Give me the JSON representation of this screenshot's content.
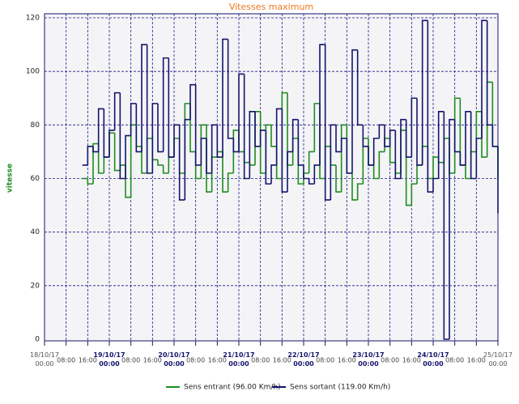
{
  "chart_data": {
    "type": "step",
    "title": "Vitesses maximum",
    "ylabel": "vitesse",
    "x": [
      "18/10/17 14:00",
      "18/10/17 16:00",
      "18/10/17 18:00",
      "18/10/17 20:00",
      "18/10/17 22:00",
      "19/10/17 00:00",
      "19/10/17 02:00",
      "19/10/17 04:00",
      "19/10/17 06:00",
      "19/10/17 08:00",
      "19/10/17 10:00",
      "19/10/17 12:00",
      "19/10/17 14:00",
      "19/10/17 16:00",
      "19/10/17 18:00",
      "19/10/17 20:00",
      "19/10/17 22:00",
      "20/10/17 00:00",
      "20/10/17 02:00",
      "20/10/17 04:00",
      "20/10/17 06:00",
      "20/10/17 08:00",
      "20/10/17 10:00",
      "20/10/17 12:00",
      "20/10/17 14:00",
      "20/10/17 16:00",
      "20/10/17 18:00",
      "20/10/17 20:00",
      "20/10/17 22:00",
      "21/10/17 00:00",
      "21/10/17 02:00",
      "21/10/17 04:00",
      "21/10/17 06:00",
      "21/10/17 08:00",
      "21/10/17 10:00",
      "21/10/17 12:00",
      "21/10/17 14:00",
      "21/10/17 16:00",
      "21/10/17 18:00",
      "21/10/17 20:00",
      "21/10/17 22:00",
      "22/10/17 00:00",
      "22/10/17 02:00",
      "22/10/17 04:00",
      "22/10/17 06:00",
      "22/10/17 08:00",
      "22/10/17 10:00",
      "22/10/17 12:00",
      "22/10/17 14:00",
      "22/10/17 16:00",
      "22/10/17 18:00",
      "22/10/17 20:00",
      "22/10/17 22:00",
      "23/10/17 00:00",
      "23/10/17 02:00",
      "23/10/17 04:00",
      "23/10/17 06:00",
      "23/10/17 08:00",
      "23/10/17 10:00",
      "23/10/17 12:00",
      "23/10/17 14:00",
      "23/10/17 16:00",
      "23/10/17 18:00",
      "23/10/17 20:00",
      "23/10/17 22:00",
      "24/10/17 00:00",
      "24/10/17 02:00",
      "24/10/17 04:00",
      "24/10/17 06:00",
      "24/10/17 08:00",
      "24/10/17 10:00",
      "24/10/17 12:00",
      "24/10/17 14:00",
      "24/10/17 16:00",
      "24/10/17 18:00",
      "24/10/17 20:00",
      "24/10/17 22:00",
      "25/10/17 00:00"
    ],
    "series": [
      {
        "name": "Sens entrant (96.00 Km/h)",
        "color": "#1e8c1e",
        "values": [
          60,
          58,
          73,
          62,
          68,
          77,
          63,
          65,
          53,
          80,
          72,
          62,
          75,
          67,
          65,
          62,
          68,
          75,
          62,
          88,
          70,
          60,
          80,
          55,
          68,
          70,
          55,
          62,
          78,
          70,
          66,
          65,
          85,
          62,
          80,
          72,
          60,
          92,
          65,
          75,
          58,
          62,
          70,
          88,
          60,
          72,
          65,
          55,
          80,
          62,
          52,
          58,
          75,
          65,
          60,
          70,
          75,
          66,
          62,
          78,
          50,
          58,
          65,
          72,
          60,
          68,
          66,
          75,
          62,
          90,
          65,
          60,
          70,
          85,
          68,
          96,
          72,
          60
        ]
      },
      {
        "name": "Sens sortant (119.00 Km/h)",
        "color": "#14146e",
        "values": [
          65,
          72,
          70,
          86,
          68,
          78,
          92,
          60,
          76,
          88,
          70,
          110,
          62,
          88,
          70,
          105,
          68,
          80,
          52,
          82,
          95,
          65,
          75,
          62,
          80,
          68,
          112,
          75,
          70,
          99,
          60,
          85,
          72,
          78,
          58,
          65,
          86,
          55,
          70,
          82,
          65,
          60,
          58,
          65,
          110,
          52,
          80,
          70,
          75,
          62,
          108,
          80,
          72,
          65,
          75,
          80,
          72,
          78,
          60,
          82,
          68,
          90,
          65,
          119,
          55,
          60,
          85,
          0,
          82,
          70,
          65,
          85,
          60,
          75,
          119,
          80,
          72,
          47
        ]
      }
    ],
    "xlim": [
      "18/10/17 00:00",
      "25/10/17 00:00"
    ],
    "xticks": [
      "18/10/17 00:00",
      {
        "value": "18/10/17 08:00",
        "label": "08:00"
      },
      {
        "value": "18/10/17 16:00",
        "label": "16:00"
      },
      "19/10/17 00:00",
      {
        "value": "19/10/17 08:00",
        "label": "08:00"
      },
      {
        "value": "19/10/17 16:00",
        "label": "16:00"
      },
      "20/10/17 00:00",
      {
        "value": "20/10/17 08:00",
        "label": "08:00"
      },
      {
        "value": "20/10/17 16:00",
        "label": "16:00"
      },
      "21/10/17 00:00",
      {
        "value": "21/10/17 08:00",
        "label": "08:00"
      },
      {
        "value": "21/10/17 16:00",
        "label": "16:00"
      },
      "22/10/17 00:00",
      {
        "value": "22/10/17 08:00",
        "label": "08:00"
      },
      {
        "value": "22/10/17 16:00",
        "label": "16:00"
      },
      "23/10/17 00:00",
      {
        "value": "23/10/17 08:00",
        "label": "08:00"
      },
      {
        "value": "23/10/17 16:00",
        "label": "16:00"
      },
      "24/10/17 00:00",
      {
        "value": "24/10/17 08:00",
        "label": "08:00"
      },
      {
        "value": "24/10/17 16:00",
        "label": "16:00"
      },
      "25/10/17 00:00"
    ],
    "ylim": [
      0,
      120
    ],
    "yticks": [
      0,
      20,
      40,
      60,
      80,
      100,
      120
    ],
    "grid": true
  }
}
